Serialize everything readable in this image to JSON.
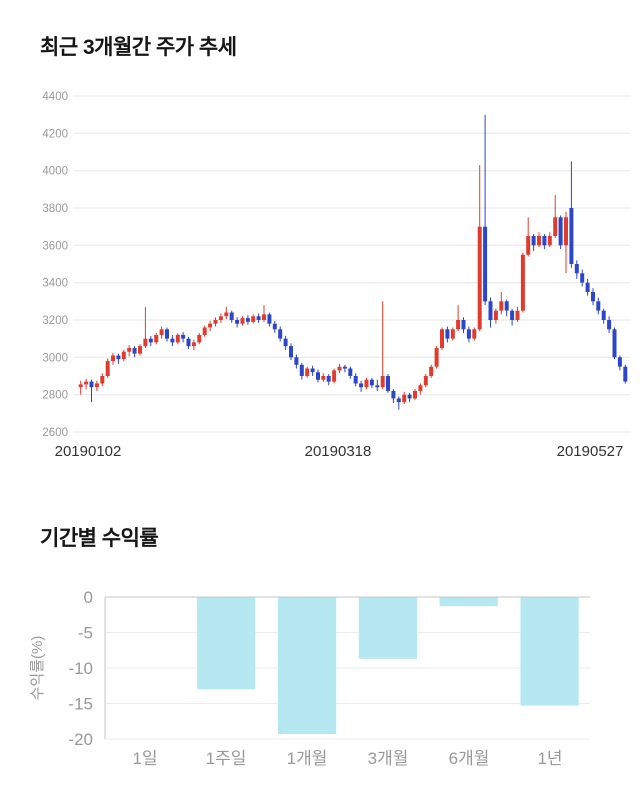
{
  "chart_data": [
    {
      "type": "candlestick",
      "title": "최근 3개월간 주가 추세",
      "ylim": [
        2600,
        4400
      ],
      "yticks": [
        4400,
        4200,
        4000,
        3800,
        3600,
        3400,
        3200,
        3000,
        2800,
        2600
      ],
      "xtick_labels": [
        "20190102",
        "20190318",
        "20190527"
      ],
      "up_color": "#e03b2f",
      "down_color": "#2d46c8",
      "grid_color": "#e6e6e6",
      "tick_color": "#999999",
      "date_color": "#333333",
      "candles": [
        [
          2840,
          2875,
          2800,
          2855
        ],
        [
          2855,
          2885,
          2830,
          2870
        ],
        [
          2870,
          2880,
          2760,
          2840
        ],
        [
          2840,
          2875,
          2820,
          2860
        ],
        [
          2860,
          2915,
          2845,
          2900
        ],
        [
          2900,
          2995,
          2890,
          2980
        ],
        [
          2980,
          3025,
          2960,
          3010
        ],
        [
          3010,
          3020,
          2965,
          2990
        ],
        [
          2990,
          3040,
          2980,
          3030
        ],
        [
          3030,
          3065,
          3005,
          3050
        ],
        [
          3050,
          3060,
          3000,
          3020
        ],
        [
          3020,
          3070,
          3010,
          3060
        ],
        [
          3060,
          3270,
          3050,
          3100
        ],
        [
          3100,
          3115,
          3060,
          3080
        ],
        [
          3080,
          3130,
          3070,
          3120
        ],
        [
          3120,
          3165,
          3100,
          3150
        ],
        [
          3150,
          3160,
          3085,
          3100
        ],
        [
          3100,
          3120,
          3060,
          3080
        ],
        [
          3080,
          3130,
          3070,
          3120
        ],
        [
          3120,
          3135,
          3080,
          3100
        ],
        [
          3100,
          3110,
          3045,
          3060
        ],
        [
          3060,
          3095,
          3040,
          3080
        ],
        [
          3080,
          3130,
          3070,
          3120
        ],
        [
          3120,
          3170,
          3110,
          3160
        ],
        [
          3160,
          3195,
          3140,
          3180
        ],
        [
          3180,
          3215,
          3165,
          3200
        ],
        [
          3200,
          3235,
          3185,
          3220
        ],
        [
          3220,
          3270,
          3205,
          3240
        ],
        [
          3240,
          3250,
          3185,
          3200
        ],
        [
          3200,
          3215,
          3160,
          3180
        ],
        [
          3180,
          3220,
          3170,
          3210
        ],
        [
          3210,
          3225,
          3175,
          3190
        ],
        [
          3190,
          3230,
          3180,
          3220
        ],
        [
          3220,
          3235,
          3185,
          3200
        ],
        [
          3200,
          3280,
          3190,
          3230
        ],
        [
          3230,
          3240,
          3165,
          3180
        ],
        [
          3180,
          3195,
          3130,
          3150
        ],
        [
          3150,
          3165,
          3085,
          3100
        ],
        [
          3100,
          3115,
          3040,
          3060
        ],
        [
          3060,
          3075,
          2985,
          3000
        ],
        [
          3000,
          3015,
          2940,
          2960
        ],
        [
          2960,
          2970,
          2880,
          2900
        ],
        [
          2900,
          2950,
          2890,
          2940
        ],
        [
          2940,
          2955,
          2900,
          2920
        ],
        [
          2920,
          2935,
          2865,
          2880
        ],
        [
          2880,
          2915,
          2870,
          2900
        ],
        [
          2900,
          2910,
          2850,
          2870
        ],
        [
          2870,
          2940,
          2860,
          2930
        ],
        [
          2930,
          2965,
          2915,
          2950
        ],
        [
          2950,
          2960,
          2920,
          2940
        ],
        [
          2940,
          2950,
          2885,
          2900
        ],
        [
          2900,
          2915,
          2845,
          2860
        ],
        [
          2860,
          2875,
          2815,
          2840
        ],
        [
          2840,
          2890,
          2830,
          2880
        ],
        [
          2880,
          2890,
          2835,
          2850
        ],
        [
          2850,
          2880,
          2820,
          2840
        ],
        [
          2840,
          3300,
          2830,
          2900
        ],
        [
          2900,
          2910,
          2810,
          2820
        ],
        [
          2820,
          2830,
          2755,
          2780
        ],
        [
          2780,
          2790,
          2720,
          2760
        ],
        [
          2760,
          2815,
          2750,
          2800
        ],
        [
          2800,
          2810,
          2760,
          2780
        ],
        [
          2780,
          2830,
          2770,
          2820
        ],
        [
          2820,
          2860,
          2800,
          2850
        ],
        [
          2850,
          2910,
          2840,
          2900
        ],
        [
          2900,
          2960,
          2890,
          2950
        ],
        [
          2950,
          3060,
          2940,
          3050
        ],
        [
          3050,
          3160,
          3040,
          3150
        ],
        [
          3150,
          3165,
          3080,
          3100
        ],
        [
          3100,
          3160,
          3090,
          3150
        ],
        [
          3150,
          3280,
          3140,
          3200
        ],
        [
          3200,
          3215,
          3130,
          3150
        ],
        [
          3150,
          3165,
          3080,
          3100
        ],
        [
          3100,
          3160,
          3090,
          3150
        ],
        [
          3150,
          4030,
          3140,
          3700
        ],
        [
          3700,
          4300,
          3280,
          3300
        ],
        [
          3300,
          3320,
          3160,
          3200
        ],
        [
          3200,
          3260,
          3180,
          3250
        ],
        [
          3250,
          3350,
          3230,
          3300
        ],
        [
          3300,
          3310,
          3220,
          3250
        ],
        [
          3250,
          3260,
          3170,
          3200
        ],
        [
          3200,
          3270,
          3190,
          3250
        ],
        [
          3250,
          3560,
          3240,
          3550
        ],
        [
          3550,
          3750,
          3540,
          3650
        ],
        [
          3650,
          3660,
          3570,
          3600
        ],
        [
          3600,
          3670,
          3590,
          3650
        ],
        [
          3650,
          3660,
          3580,
          3600
        ],
        [
          3600,
          3670,
          3590,
          3650
        ],
        [
          3650,
          3870,
          3640,
          3750
        ],
        [
          3750,
          3760,
          3580,
          3600
        ],
        [
          3600,
          3780,
          3450,
          3750
        ],
        [
          3800,
          4050,
          3480,
          3500
        ],
        [
          3500,
          3520,
          3420,
          3450
        ],
        [
          3450,
          3470,
          3380,
          3400
        ],
        [
          3400,
          3420,
          3330,
          3350
        ],
        [
          3350,
          3370,
          3280,
          3300
        ],
        [
          3300,
          3320,
          3230,
          3250
        ],
        [
          3250,
          3260,
          3180,
          3200
        ],
        [
          3200,
          3220,
          3130,
          3150
        ],
        [
          3150,
          3160,
          2990,
          3000
        ],
        [
          3000,
          3010,
          2930,
          2950
        ],
        [
          2950,
          2960,
          2860,
          2870
        ]
      ]
    },
    {
      "type": "bar",
      "title": "기간별 수익률",
      "categories": [
        "1일",
        "1주일",
        "1개월",
        "3개월",
        "6개월",
        "1년"
      ],
      "values": [
        0,
        -13,
        -19.3,
        -8.7,
        -1.3,
        -15.3
      ],
      "ylabel": "수익률(%)",
      "ylim": [
        -20,
        0
      ],
      "yticks": [
        0,
        -5,
        -10,
        -15,
        -20
      ],
      "bar_color": "#b6e8f2",
      "axis_color": "#c5c5c5",
      "grid_color": "#ececec",
      "tick_color": "#999999"
    }
  ]
}
